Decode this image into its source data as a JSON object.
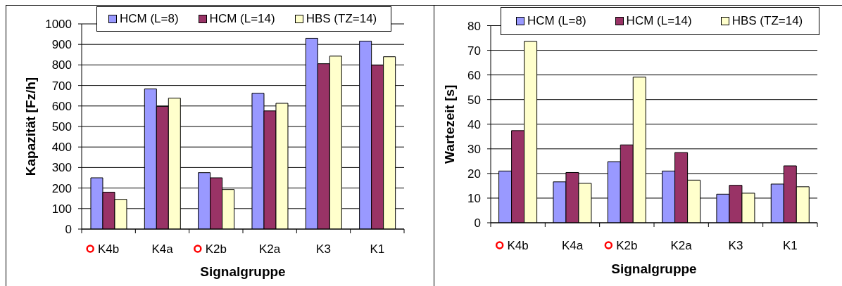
{
  "chart_data": [
    {
      "type": "bar",
      "xlabel": "Signalgruppe",
      "ylabel": "Kapazität [Fz/h]",
      "categories": [
        "K4b",
        "K4a",
        "K2b",
        "K2a",
        "K3",
        "K1"
      ],
      "series": [
        {
          "name": "HCM (L=8)",
          "color": "#9999ff",
          "values": [
            250,
            683,
            275,
            662,
            930,
            916
          ]
        },
        {
          "name": "HCM (L=14)",
          "color": "#993366",
          "values": [
            180,
            598,
            250,
            576,
            806,
            799
          ]
        },
        {
          "name": "HBS (TZ=14)",
          "color": "#ffffcc",
          "values": [
            145,
            638,
            193,
            613,
            843,
            840
          ]
        }
      ],
      "ylim": [
        0,
        1000
      ],
      "yticks": [
        0,
        100,
        200,
        300,
        400,
        500,
        600,
        700,
        800,
        900,
        1000
      ],
      "grid": "y",
      "legend": "top"
    },
    {
      "type": "bar",
      "xlabel": "Signalgruppe",
      "ylabel": "Wartezeit [s]",
      "categories": [
        "K4b",
        "K4a",
        "K2b",
        "K2a",
        "K3",
        "K1"
      ],
      "series": [
        {
          "name": "HCM (L=8)",
          "color": "#9999ff",
          "values": [
            21,
            16.6,
            24.8,
            21,
            11.6,
            15.7
          ]
        },
        {
          "name": "HCM (L=14)",
          "color": "#993366",
          "values": [
            37.4,
            20.4,
            31.6,
            28.5,
            15.2,
            23.1
          ]
        },
        {
          "name": "HBS (TZ=14)",
          "color": "#ffffcc",
          "values": [
            73.6,
            16,
            59.1,
            17.3,
            12,
            14.6
          ]
        }
      ],
      "ylim": [
        0,
        80
      ],
      "yticks": [
        0,
        10,
        20,
        30,
        40,
        50,
        60,
        70,
        80
      ],
      "grid": "y",
      "legend": "top"
    }
  ]
}
